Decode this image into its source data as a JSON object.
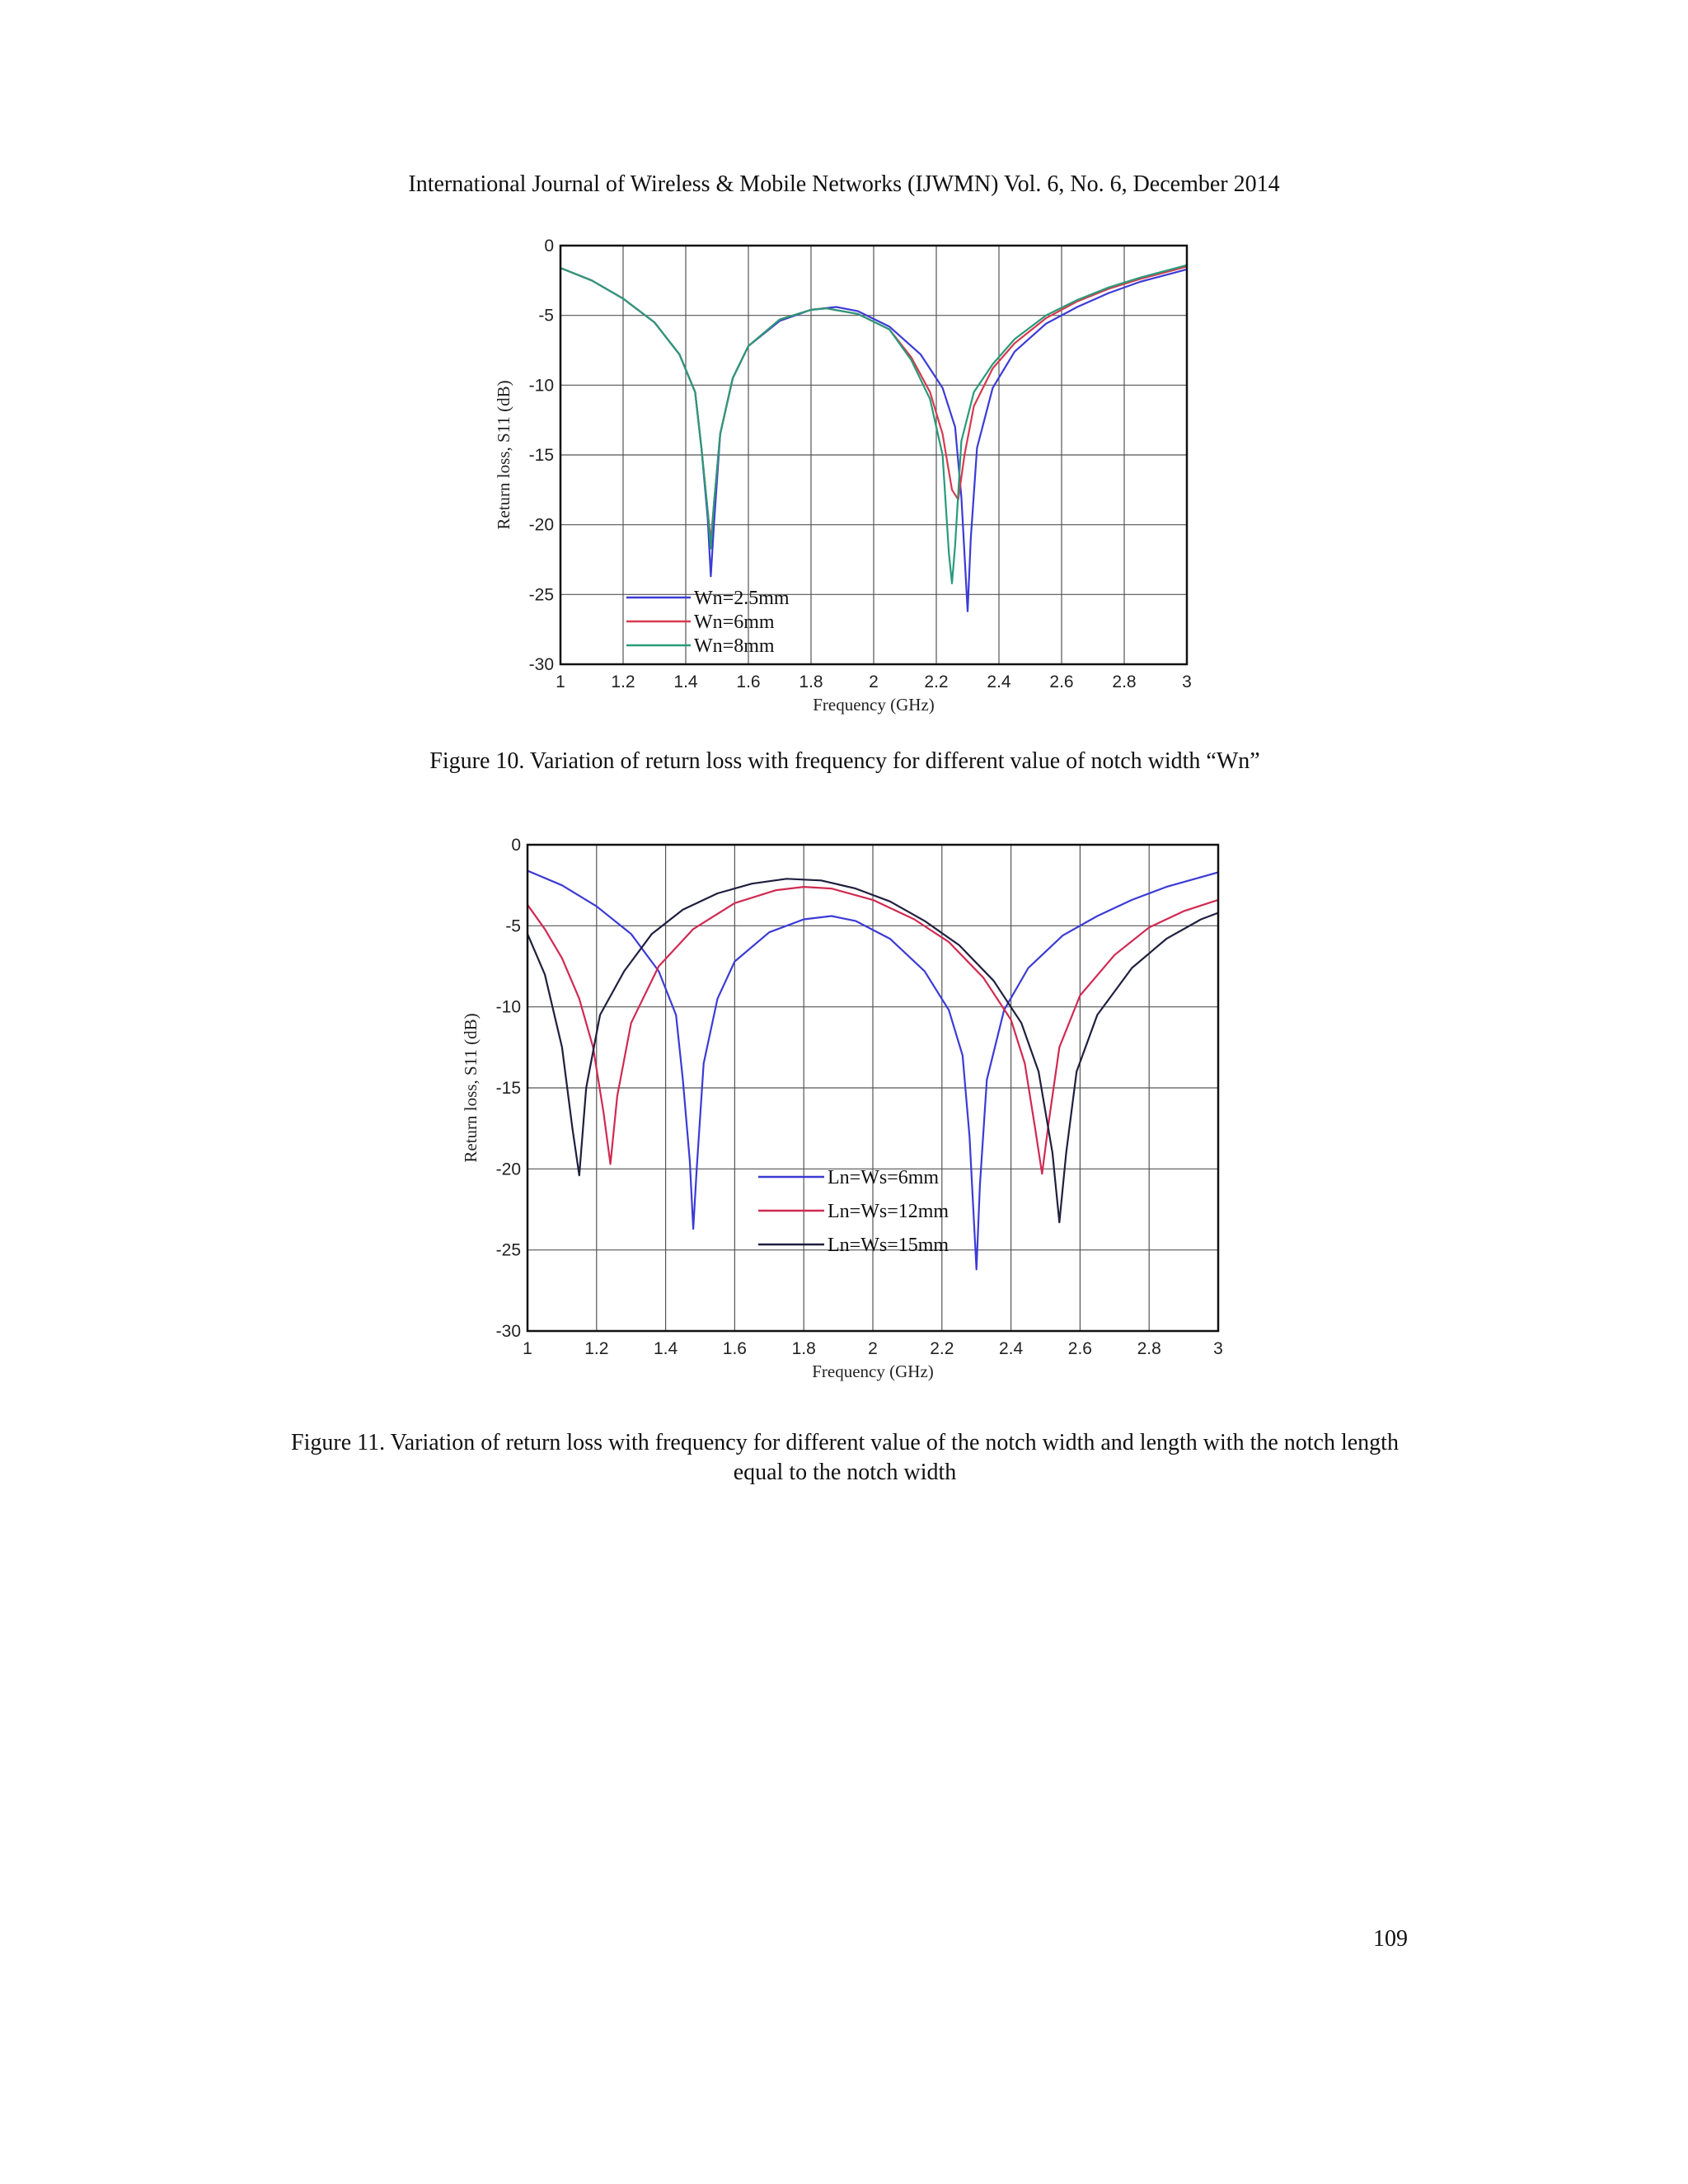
{
  "page": {
    "running_header": "International Journal of Wireless & Mobile Networks (IJWMN) Vol. 6, No. 6, December 2014",
    "page_number": "109"
  },
  "figures": [
    {
      "caption": "Figure 10.  Variation of return loss with frequency for different value of notch width “Wn”"
    },
    {
      "caption": "Figure 11.  Variation of return loss with frequency for different value of the notch width and length with the notch length equal to the notch width"
    }
  ],
  "chart_data": [
    {
      "type": "line",
      "xlabel": "Frequency (GHz)",
      "ylabel": "Return loss, S11 (dB)",
      "xlim": [
        1,
        3
      ],
      "ylim": [
        -30,
        0
      ],
      "xticks": [
        "1",
        "1.2",
        "1.4",
        "1.6",
        "1.8",
        "2",
        "2.2",
        "2.4",
        "2.6",
        "2.8",
        "3"
      ],
      "yticks": [
        "0",
        "-5",
        "-10",
        "-15",
        "-20",
        "-25",
        "-30"
      ],
      "grid": true,
      "legend_position": "bottom-left",
      "series": [
        {
          "name": "Wn=2.5mm",
          "color": "#3b3bd6",
          "points": [
            [
              1.0,
              -1.6
            ],
            [
              1.1,
              -2.5
            ],
            [
              1.2,
              -3.8
            ],
            [
              1.3,
              -5.5
            ],
            [
              1.38,
              -7.8
            ],
            [
              1.43,
              -10.5
            ],
            [
              1.45,
              -14.5
            ],
            [
              1.47,
              -19.5
            ],
            [
              1.48,
              -23.7
            ],
            [
              1.49,
              -20.0
            ],
            [
              1.51,
              -13.5
            ],
            [
              1.55,
              -9.5
            ],
            [
              1.6,
              -7.2
            ],
            [
              1.7,
              -5.4
            ],
            [
              1.8,
              -4.6
            ],
            [
              1.88,
              -4.4
            ],
            [
              1.95,
              -4.7
            ],
            [
              2.05,
              -5.8
            ],
            [
              2.15,
              -7.8
            ],
            [
              2.22,
              -10.2
            ],
            [
              2.26,
              -13.0
            ],
            [
              2.28,
              -18.0
            ],
            [
              2.3,
              -26.2
            ],
            [
              2.31,
              -21.0
            ],
            [
              2.33,
              -14.5
            ],
            [
              2.38,
              -10.2
            ],
            [
              2.45,
              -7.6
            ],
            [
              2.55,
              -5.6
            ],
            [
              2.65,
              -4.4
            ],
            [
              2.75,
              -3.4
            ],
            [
              2.85,
              -2.6
            ],
            [
              2.95,
              -2.0
            ],
            [
              3.0,
              -1.7
            ]
          ]
        },
        {
          "name": "Wn=6mm",
          "color": "#d63a50",
          "points": [
            [
              1.0,
              -1.6
            ],
            [
              1.1,
              -2.5
            ],
            [
              1.2,
              -3.8
            ],
            [
              1.3,
              -5.5
            ],
            [
              1.38,
              -7.8
            ],
            [
              1.43,
              -10.5
            ],
            [
              1.45,
              -14.5
            ],
            [
              1.47,
              -19.0
            ],
            [
              1.48,
              -21.2
            ],
            [
              1.49,
              -18.5
            ],
            [
              1.51,
              -13.5
            ],
            [
              1.55,
              -9.5
            ],
            [
              1.6,
              -7.2
            ],
            [
              1.7,
              -5.3
            ],
            [
              1.8,
              -4.6
            ],
            [
              1.85,
              -4.5
            ],
            [
              1.95,
              -4.9
            ],
            [
              2.05,
              -6.0
            ],
            [
              2.12,
              -8.0
            ],
            [
              2.18,
              -10.5
            ],
            [
              2.22,
              -13.5
            ],
            [
              2.25,
              -17.5
            ],
            [
              2.27,
              -18.2
            ],
            [
              2.29,
              -15.0
            ],
            [
              2.32,
              -11.5
            ],
            [
              2.38,
              -8.8
            ],
            [
              2.45,
              -7.0
            ],
            [
              2.55,
              -5.2
            ],
            [
              2.65,
              -4.0
            ],
            [
              2.75,
              -3.1
            ],
            [
              2.85,
              -2.4
            ],
            [
              2.95,
              -1.8
            ],
            [
              3.0,
              -1.5
            ]
          ]
        },
        {
          "name": "Wn=8mm",
          "color": "#2a9a7a",
          "points": [
            [
              1.0,
              -1.6
            ],
            [
              1.1,
              -2.5
            ],
            [
              1.2,
              -3.8
            ],
            [
              1.3,
              -5.5
            ],
            [
              1.38,
              -7.8
            ],
            [
              1.43,
              -10.5
            ],
            [
              1.45,
              -14.5
            ],
            [
              1.47,
              -19.0
            ],
            [
              1.48,
              -21.7
            ],
            [
              1.49,
              -18.5
            ],
            [
              1.51,
              -13.5
            ],
            [
              1.55,
              -9.5
            ],
            [
              1.6,
              -7.2
            ],
            [
              1.7,
              -5.3
            ],
            [
              1.8,
              -4.6
            ],
            [
              1.85,
              -4.5
            ],
            [
              1.95,
              -4.9
            ],
            [
              2.05,
              -6.0
            ],
            [
              2.12,
              -8.2
            ],
            [
              2.18,
              -11.0
            ],
            [
              2.22,
              -15.0
            ],
            [
              2.24,
              -22.0
            ],
            [
              2.25,
              -24.2
            ],
            [
              2.26,
              -21.5
            ],
            [
              2.28,
              -14.0
            ],
            [
              2.32,
              -10.5
            ],
            [
              2.38,
              -8.5
            ],
            [
              2.45,
              -6.7
            ],
            [
              2.55,
              -5.0
            ],
            [
              2.65,
              -3.9
            ],
            [
              2.75,
              -3.0
            ],
            [
              2.85,
              -2.3
            ],
            [
              2.95,
              -1.7
            ],
            [
              3.0,
              -1.4
            ]
          ]
        }
      ]
    },
    {
      "type": "line",
      "xlabel": "Frequency (GHz)",
      "ylabel": "Return loss, S11 (dB)",
      "xlim": [
        1,
        3
      ],
      "ylim": [
        -30,
        0
      ],
      "xticks": [
        "1",
        "1.2",
        "1.4",
        "1.6",
        "1.8",
        "2",
        "2.2",
        "2.4",
        "2.6",
        "2.8",
        "3"
      ],
      "yticks": [
        "0",
        "-5",
        "-10",
        "-15",
        "-20",
        "-25",
        "-30"
      ],
      "grid": true,
      "legend_position": "center",
      "series": [
        {
          "name": "Ln=Ws=6mm",
          "color": "#3b3bd6",
          "points": [
            [
              1.0,
              -1.6
            ],
            [
              1.1,
              -2.5
            ],
            [
              1.2,
              -3.8
            ],
            [
              1.3,
              -5.5
            ],
            [
              1.38,
              -7.8
            ],
            [
              1.43,
              -10.5
            ],
            [
              1.45,
              -14.5
            ],
            [
              1.47,
              -19.5
            ],
            [
              1.48,
              -23.7
            ],
            [
              1.49,
              -20.0
            ],
            [
              1.51,
              -13.5
            ],
            [
              1.55,
              -9.5
            ],
            [
              1.6,
              -7.2
            ],
            [
              1.7,
              -5.4
            ],
            [
              1.8,
              -4.6
            ],
            [
              1.88,
              -4.4
            ],
            [
              1.95,
              -4.7
            ],
            [
              2.05,
              -5.8
            ],
            [
              2.15,
              -7.8
            ],
            [
              2.22,
              -10.2
            ],
            [
              2.26,
              -13.0
            ],
            [
              2.28,
              -18.0
            ],
            [
              2.3,
              -26.2
            ],
            [
              2.31,
              -21.0
            ],
            [
              2.33,
              -14.5
            ],
            [
              2.38,
              -10.2
            ],
            [
              2.45,
              -7.6
            ],
            [
              2.55,
              -5.6
            ],
            [
              2.65,
              -4.4
            ],
            [
              2.75,
              -3.4
            ],
            [
              2.85,
              -2.6
            ],
            [
              2.95,
              -2.0
            ],
            [
              3.0,
              -1.7
            ]
          ]
        },
        {
          "name": "Ln=Ws=12mm",
          "color": "#d02a52",
          "points": [
            [
              1.0,
              -3.7
            ],
            [
              1.05,
              -5.2
            ],
            [
              1.1,
              -7.0
            ],
            [
              1.15,
              -9.5
            ],
            [
              1.19,
              -12.5
            ],
            [
              1.22,
              -16.5
            ],
            [
              1.24,
              -19.7
            ],
            [
              1.26,
              -15.5
            ],
            [
              1.3,
              -11.0
            ],
            [
              1.38,
              -7.5
            ],
            [
              1.48,
              -5.2
            ],
            [
              1.6,
              -3.6
            ],
            [
              1.72,
              -2.8
            ],
            [
              1.8,
              -2.6
            ],
            [
              1.88,
              -2.7
            ],
            [
              2.0,
              -3.4
            ],
            [
              2.12,
              -4.6
            ],
            [
              2.22,
              -6.0
            ],
            [
              2.32,
              -8.2
            ],
            [
              2.4,
              -10.8
            ],
            [
              2.44,
              -13.5
            ],
            [
              2.47,
              -17.5
            ],
            [
              2.49,
              -20.3
            ],
            [
              2.51,
              -17.0
            ],
            [
              2.54,
              -12.5
            ],
            [
              2.6,
              -9.3
            ],
            [
              2.7,
              -6.8
            ],
            [
              2.8,
              -5.1
            ],
            [
              2.9,
              -4.1
            ],
            [
              3.0,
              -3.4
            ]
          ]
        },
        {
          "name": "Ln=Ws=15mm",
          "color": "#1f1f3f",
          "points": [
            [
              1.0,
              -5.5
            ],
            [
              1.05,
              -8.0
            ],
            [
              1.1,
              -12.5
            ],
            [
              1.13,
              -17.5
            ],
            [
              1.15,
              -20.4
            ],
            [
              1.17,
              -15.0
            ],
            [
              1.21,
              -10.5
            ],
            [
              1.28,
              -7.8
            ],
            [
              1.36,
              -5.5
            ],
            [
              1.45,
              -4.0
            ],
            [
              1.55,
              -3.0
            ],
            [
              1.65,
              -2.4
            ],
            [
              1.75,
              -2.1
            ],
            [
              1.85,
              -2.2
            ],
            [
              1.95,
              -2.7
            ],
            [
              2.05,
              -3.5
            ],
            [
              2.15,
              -4.7
            ],
            [
              2.25,
              -6.2
            ],
            [
              2.35,
              -8.4
            ],
            [
              2.43,
              -11.0
            ],
            [
              2.48,
              -14.0
            ],
            [
              2.52,
              -19.0
            ],
            [
              2.54,
              -23.3
            ],
            [
              2.56,
              -19.0
            ],
            [
              2.59,
              -14.0
            ],
            [
              2.65,
              -10.5
            ],
            [
              2.75,
              -7.6
            ],
            [
              2.85,
              -5.8
            ],
            [
              2.95,
              -4.6
            ],
            [
              3.0,
              -4.2
            ]
          ]
        }
      ]
    }
  ]
}
